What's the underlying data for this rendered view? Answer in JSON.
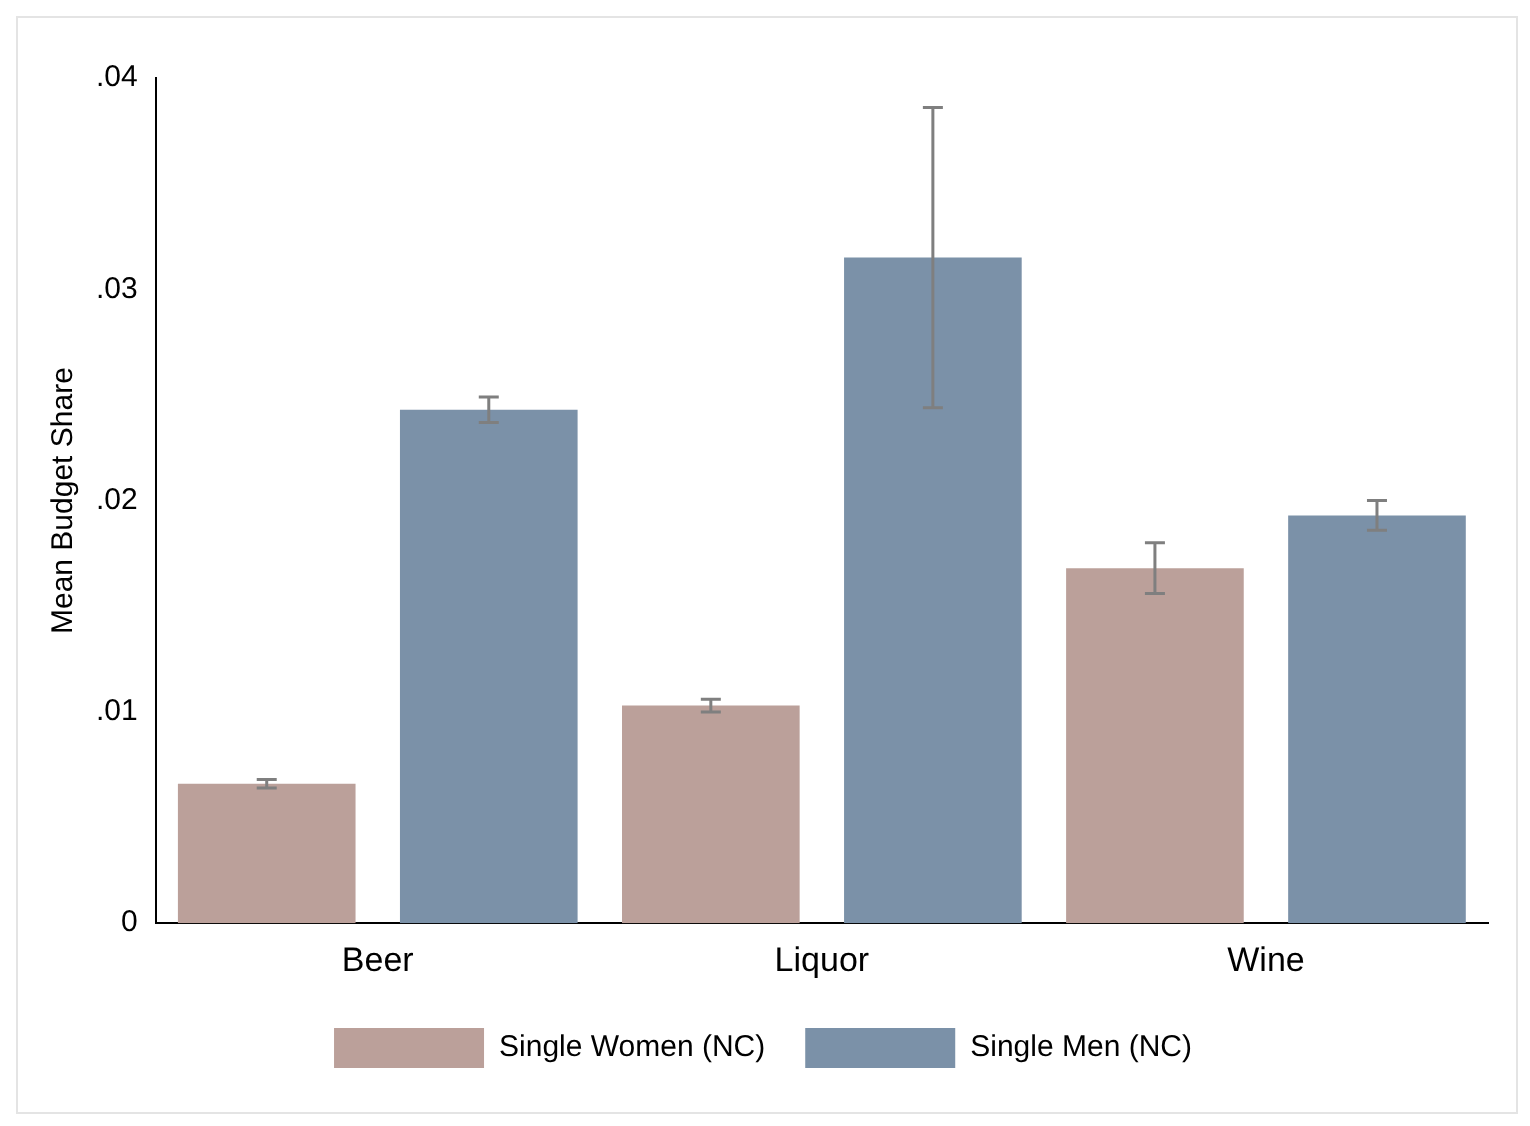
{
  "chart_data": {
    "type": "bar",
    "ylabel": "Mean Budget Share",
    "categories": [
      "Beer",
      "Liquor",
      "Wine"
    ],
    "series": [
      {
        "name": "Single Women (NC)",
        "color": "#bba09a",
        "values": [
          0.0066,
          0.0103,
          0.0168
        ],
        "errors": [
          0.0002,
          0.0003,
          0.0012
        ]
      },
      {
        "name": "Single Men (NC)",
        "color": "#7b91a8",
        "values": [
          0.0243,
          0.0315,
          0.0193
        ],
        "errors": [
          0.0006,
          0.0071,
          0.0007
        ]
      }
    ],
    "ylim": [
      0,
      0.04
    ],
    "yticks": [
      {
        "value": 0,
        "label": "0"
      },
      {
        "value": 0.01,
        "label": ".01"
      },
      {
        "value": 0.02,
        "label": ".02"
      },
      {
        "value": 0.03,
        "label": ".03"
      },
      {
        "value": 0.04,
        "label": ".04"
      }
    ],
    "grid": false,
    "legend": "bottom"
  }
}
